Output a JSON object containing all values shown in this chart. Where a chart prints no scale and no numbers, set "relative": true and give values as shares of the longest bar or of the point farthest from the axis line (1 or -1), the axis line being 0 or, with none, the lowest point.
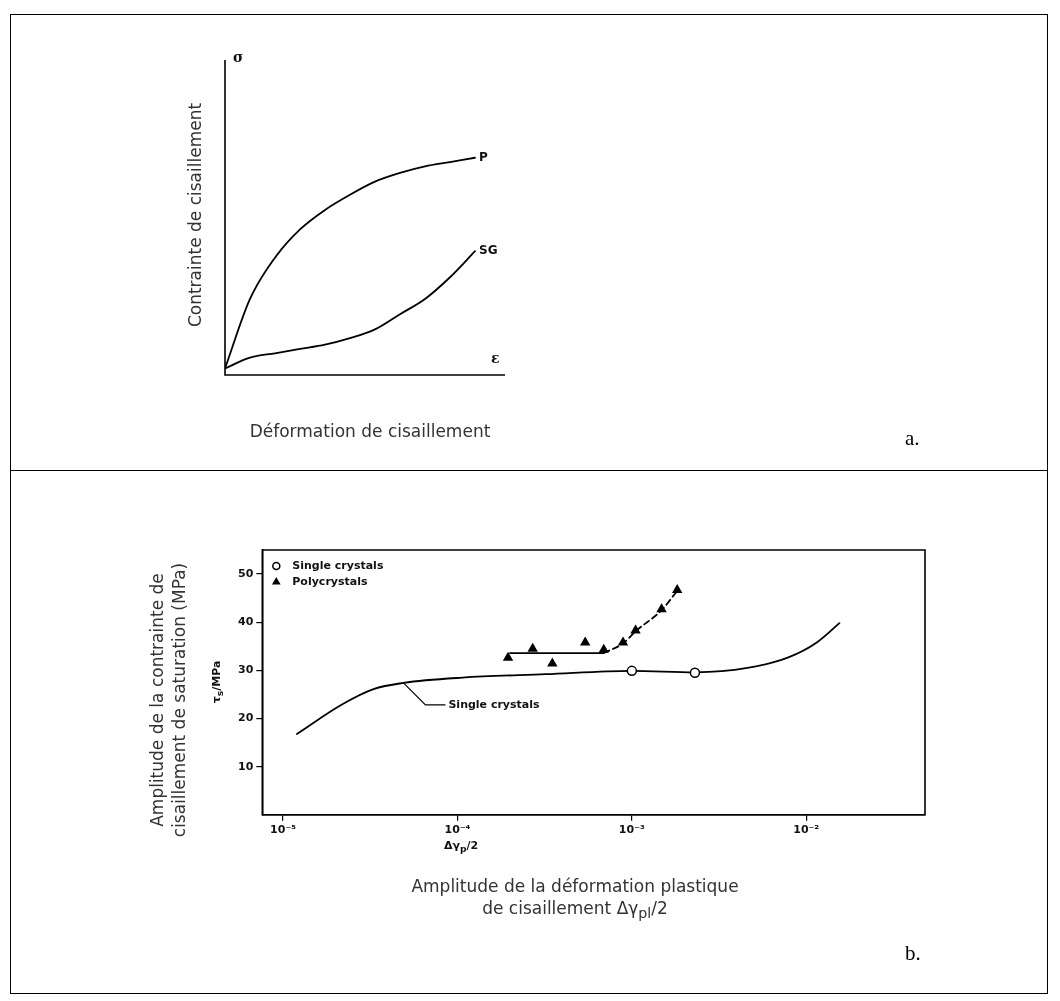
{
  "chart_data": [
    {
      "type": "line",
      "relative": true,
      "legend": false,
      "categories": [
        null,
        null,
        null,
        null,
        null,
        null,
        null,
        null,
        null,
        null,
        null
      ],
      "series": [
        {
          "name": "P",
          "color": "#000000",
          "values": [
            0.03,
            0.35,
            0.54,
            0.67,
            0.76,
            0.83,
            0.89,
            0.93,
            0.96,
            0.98,
            1
          ]
        },
        {
          "name": "SG",
          "color": "#000000",
          "values": [
            0.03,
            0.08,
            0.1,
            0.12,
            0.14,
            0.17,
            0.21,
            0.28,
            0.35,
            0.45,
            0.57
          ]
        }
      ],
      "xlabel": "Déformation de cisaillement",
      "ylabel": "Contrainte de cisaillement",
      "annotations": [
        "σ",
        "ε",
        "a."
      ]
    },
    {
      "type": "scatter",
      "log": "x",
      "legend": "top left",
      "xlim": [
        7.6e-06,
        0.048
      ],
      "xticks": [
        {
          "value": 1e-05,
          "label": "10⁻⁵"
        },
        {
          "value": 0.0001,
          "label": "10⁻⁴"
        },
        {
          "value": 0.001,
          "label": "10⁻³"
        },
        {
          "value": 0.01,
          "label": "10⁻²"
        }
      ],
      "ylim": [
        0,
        55
      ],
      "yticks": [
        10,
        20,
        30,
        40,
        50
      ],
      "xlabel": "Amplitude de la déformation plastique\nde cisaillement Δγ$_{pl}$/2",
      "ylabel": "Amplitude de la contrainte de\ncisaillement de saturation (MPa)",
      "series": [
        {
          "type": "line",
          "color": "#000000",
          "x": [
            1.2e-05,
            2.2e-05,
            3.3e-05,
            4.9e-05,
            0.000107,
            0.00032,
            0.001,
            0.0023,
            0.0046,
            0.0079,
            0.0115,
            0.0155
          ],
          "values": [
            16.8,
            23.0,
            26.1,
            27.4,
            28.5,
            29.2,
            29.9,
            29.6,
            30.5,
            32.7,
            35.8,
            39.8
          ]
        },
        {
          "name": "Single crystals",
          "color": "#000000",
          "marker": "circle",
          "x": [
            0.001,
            0.0023
          ],
          "values": [
            29.9,
            29.5
          ]
        },
        {
          "name": "Polycrystals",
          "color": "#000000",
          "marker": "triangle",
          "x": [
            0.000195,
            0.00027,
            0.00035,
            0.00054,
            0.00069,
            0.00089,
            0.00105,
            0.00148,
            0.00182
          ],
          "values": [
            32.6,
            34.5,
            31.4,
            35.8,
            34.3,
            35.8,
            38.3,
            42.7,
            46.7
          ]
        },
        {
          "type": "line",
          "color": "#000000",
          "x": [
            0.0002,
            0.00069
          ],
          "values": [
            33.6,
            33.6
          ]
        },
        {
          "type": "line",
          "color": "#000000",
          "line_style": "dashed",
          "x": [
            0.00069,
            0.00089,
            0.00105,
            0.00148,
            0.00182
          ],
          "values": [
            33.6,
            35.6,
            38.1,
            42.5,
            46.5
          ]
        }
      ],
      "annotations": [
        {
          "text": "Single crystals",
          "x": 4.9e-05,
          "y": 27.4
        },
        "τ$_{s}$/MPa",
        "Δγ$_{p}$/2",
        "b."
      ]
    }
  ]
}
